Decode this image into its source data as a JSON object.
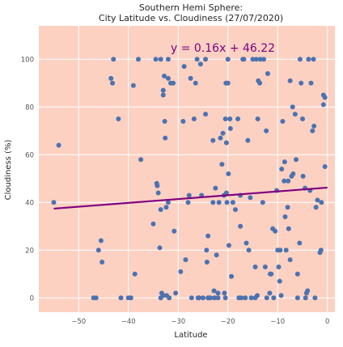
{
  "chart_data": {
    "type": "scatter",
    "title_line1": "Southern Hemi Sphere:",
    "title_line2": "City Latitude vs. Cloudiness (27/07/2020)",
    "xlabel": "Latitude",
    "ylabel": "Cloudiness (%)",
    "xlim": [
      -58,
      1.5
    ],
    "ylim": [
      -6,
      114
    ],
    "xticks": [
      -50,
      -40,
      -30,
      -20,
      -10,
      0
    ],
    "yticks": [
      0,
      20,
      40,
      60,
      80,
      100
    ],
    "grid": true,
    "background_color": "#fcd1c2",
    "point_color": "#4c72b0",
    "line_color": "#800080",
    "regression": {
      "slope": 0.16,
      "intercept": 46.22,
      "x_range": [
        -55,
        0
      ],
      "equation": "y = 0.16x + 46.22",
      "equation_color": "#800080"
    },
    "series": [
      {
        "points": [
          [
            -55,
            40
          ],
          [
            -54,
            64
          ],
          [
            -47,
            0
          ],
          [
            -46.5,
            0
          ],
          [
            -46,
            20
          ],
          [
            -45.5,
            24
          ],
          [
            -45.3,
            15
          ],
          [
            -43.5,
            92
          ],
          [
            -43.2,
            90
          ],
          [
            -43,
            100
          ],
          [
            -42,
            75
          ],
          [
            -41.5,
            0
          ],
          [
            -40,
            0
          ],
          [
            -39.5,
            0
          ],
          [
            -39,
            89
          ],
          [
            -38.7,
            10
          ],
          [
            -38,
            100
          ],
          [
            -37.5,
            58
          ],
          [
            -35,
            31
          ],
          [
            -34.5,
            100
          ],
          [
            -34.3,
            48
          ],
          [
            -34.2,
            47
          ],
          [
            -34,
            44
          ],
          [
            -33.7,
            21
          ],
          [
            -33.5,
            100
          ],
          [
            -33.5,
            37
          ],
          [
            -33.5,
            0
          ],
          [
            -33.3,
            2
          ],
          [
            -33,
            87
          ],
          [
            -33,
            85
          ],
          [
            -33,
            1
          ],
          [
            -32.8,
            93
          ],
          [
            -32.7,
            74
          ],
          [
            -32.6,
            67
          ],
          [
            -32.4,
            38
          ],
          [
            -32.3,
            1
          ],
          [
            -32,
            100
          ],
          [
            -32,
            92
          ],
          [
            -32,
            40
          ],
          [
            -31.8,
            0
          ],
          [
            -31.5,
            90
          ],
          [
            -31,
            90
          ],
          [
            -30.8,
            28
          ],
          [
            -30.5,
            2
          ],
          [
            -29.5,
            11
          ],
          [
            -29,
            74
          ],
          [
            -28.8,
            97
          ],
          [
            -28.5,
            16
          ],
          [
            -28,
            40
          ],
          [
            -27.8,
            43
          ],
          [
            -27.5,
            92
          ],
          [
            -27.3,
            0
          ],
          [
            -26.8,
            75
          ],
          [
            -26.5,
            90
          ],
          [
            -26.2,
            100
          ],
          [
            -26,
            0
          ],
          [
            -25.8,
            0
          ],
          [
            -25.5,
            98
          ],
          [
            -25.3,
            43
          ],
          [
            -25,
            0
          ],
          [
            -24.5,
            100
          ],
          [
            -24.5,
            77
          ],
          [
            -24.3,
            20
          ],
          [
            -24.2,
            15
          ],
          [
            -24,
            26
          ],
          [
            -24,
            0
          ],
          [
            -23.7,
            0
          ],
          [
            -23.5,
            0
          ],
          [
            -23,
            40
          ],
          [
            -23,
            66
          ],
          [
            -22.8,
            3
          ],
          [
            -22.7,
            0
          ],
          [
            -22.5,
            46
          ],
          [
            -22.3,
            18
          ],
          [
            -22,
            2
          ],
          [
            -22,
            0
          ],
          [
            -21.8,
            40
          ],
          [
            -21.5,
            67
          ],
          [
            -21.2,
            56
          ],
          [
            -21,
            69
          ],
          [
            -20.8,
            43
          ],
          [
            -20.7,
            2
          ],
          [
            -20.5,
            0
          ],
          [
            -20.5,
            75
          ],
          [
            -20.4,
            90
          ],
          [
            -20.3,
            65
          ],
          [
            -20.3,
            44
          ],
          [
            -20.2,
            40
          ],
          [
            -20,
            100
          ],
          [
            -20,
            90
          ],
          [
            -19.9,
            52
          ],
          [
            -19.8,
            22
          ],
          [
            -19.6,
            75
          ],
          [
            -19.5,
            71
          ],
          [
            -19.3,
            9
          ],
          [
            -19,
            40
          ],
          [
            -18.5,
            37
          ],
          [
            -18,
            75
          ],
          [
            -17.8,
            0
          ],
          [
            -17.5,
            43
          ],
          [
            -17.5,
            30
          ],
          [
            -17.3,
            0
          ],
          [
            -17,
            100
          ],
          [
            -16.8,
            100
          ],
          [
            -16.5,
            0
          ],
          [
            -16.3,
            23
          ],
          [
            -16,
            66
          ],
          [
            -15.8,
            20
          ],
          [
            -15.5,
            42
          ],
          [
            -15.3,
            0
          ],
          [
            -15,
            100
          ],
          [
            -14.5,
            13
          ],
          [
            -14.5,
            0
          ],
          [
            -14.3,
            100
          ],
          [
            -14.1,
            1
          ],
          [
            -14,
            75
          ],
          [
            -13.9,
            91
          ],
          [
            -13.6,
            90
          ],
          [
            -13.5,
            100
          ],
          [
            -13,
            40
          ],
          [
            -12.8,
            100
          ],
          [
            -12.5,
            13
          ],
          [
            -12.3,
            70
          ],
          [
            -12.2,
            0
          ],
          [
            -12,
            94
          ],
          [
            -11.6,
            2
          ],
          [
            -11.5,
            10
          ],
          [
            -11.3,
            10
          ],
          [
            -11,
            29
          ],
          [
            -10.8,
            0
          ],
          [
            -10.5,
            28
          ],
          [
            -10.2,
            45
          ],
          [
            -10,
            20
          ],
          [
            -9.8,
            13
          ],
          [
            -9.6,
            7
          ],
          [
            -9.5,
            20
          ],
          [
            -9.3,
            1
          ],
          [
            -9.2,
            54
          ],
          [
            -9,
            74
          ],
          [
            -8.7,
            49
          ],
          [
            -8.6,
            57
          ],
          [
            -8.5,
            34
          ],
          [
            -8.3,
            20
          ],
          [
            -8,
            38
          ],
          [
            -7.9,
            49
          ],
          [
            -7.8,
            29
          ],
          [
            -7.5,
            16
          ],
          [
            -7.5,
            91
          ],
          [
            -7.2,
            51
          ],
          [
            -7,
            80
          ],
          [
            -6.9,
            52
          ],
          [
            -6.5,
            77
          ],
          [
            -6.3,
            58
          ],
          [
            -6,
            10
          ],
          [
            -6,
            0
          ],
          [
            -5.6,
            23
          ],
          [
            -5.5,
            100
          ],
          [
            -5.3,
            90
          ],
          [
            -5,
            75
          ],
          [
            -4.9,
            51
          ],
          [
            -4.5,
            46
          ],
          [
            -4.4,
            0
          ],
          [
            -4.2,
            2
          ],
          [
            -4,
            3
          ],
          [
            -3.8,
            100
          ],
          [
            -3.5,
            45
          ],
          [
            -3.3,
            90
          ],
          [
            -3,
            70
          ],
          [
            -2.8,
            100
          ],
          [
            -2.7,
            72
          ],
          [
            -2.5,
            0
          ],
          [
            -2.3,
            38
          ],
          [
            -2,
            41
          ],
          [
            -1.5,
            19
          ],
          [
            -1.3,
            20
          ],
          [
            -1.2,
            40
          ],
          [
            -0.8,
            85
          ],
          [
            -0.8,
            81
          ],
          [
            -0.5,
            84
          ],
          [
            -0.5,
            55
          ]
        ]
      }
    ]
  }
}
